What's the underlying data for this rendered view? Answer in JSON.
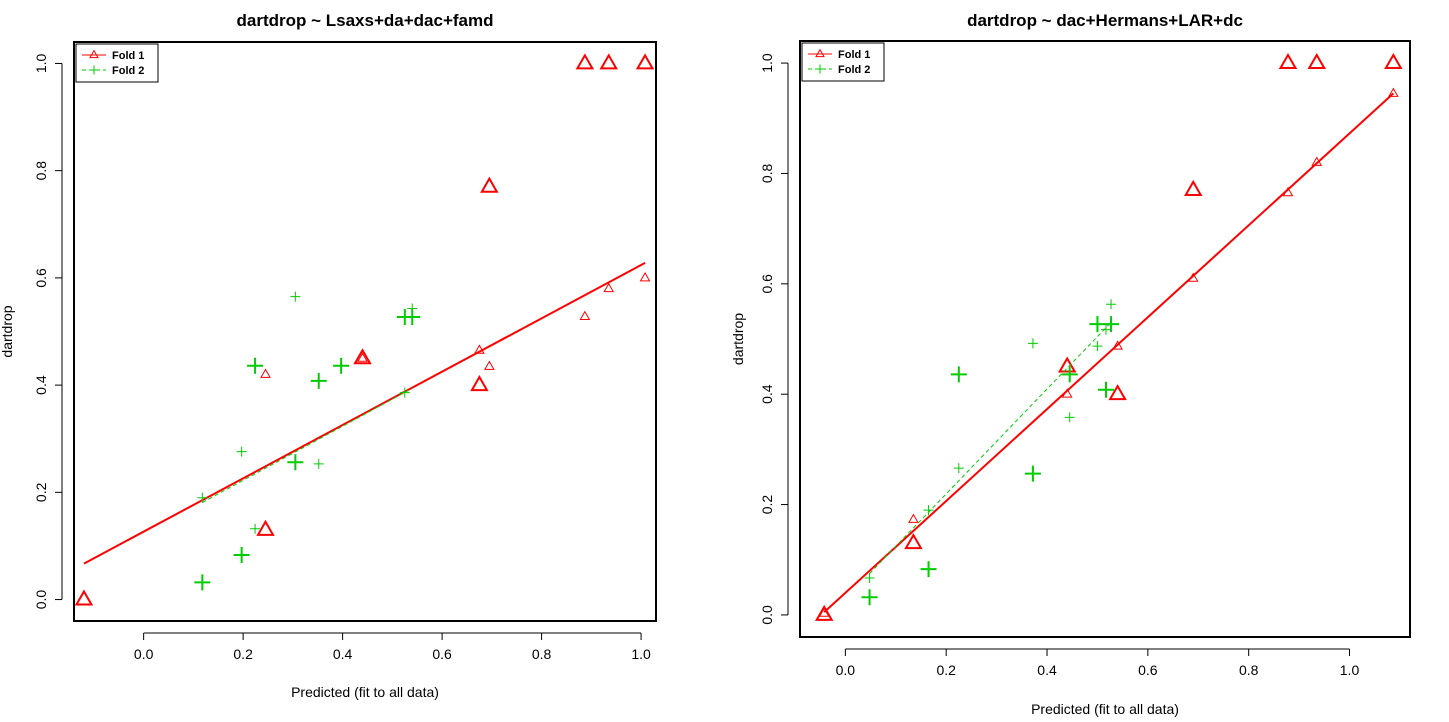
{
  "chart_data": [
    {
      "type": "scatter",
      "title": "dartdrop ~ Lsaxs+da+dac+famd",
      "xlabel": "Predicted (fit to all data)",
      "ylabel": "dartdrop",
      "xlim": [
        -0.14,
        1.03
      ],
      "ylim": [
        -0.04,
        1.04
      ],
      "xticks": [
        "0.0",
        "0.2",
        "0.4",
        "0.6",
        "0.8",
        "1.0"
      ],
      "yticks": [
        "0.0",
        "0.2",
        "0.4",
        "0.6",
        "0.8",
        "1.0"
      ],
      "legend": {
        "placement": "top-left",
        "entries": [
          "Fold 1",
          "Fold 2"
        ]
      },
      "colors": {
        "Fold 1": "#ff0000",
        "Fold 2": "#00cc00"
      },
      "series": [
        {
          "name": "Fold 1",
          "marker": "triangle",
          "observed": [
            {
              "x": -0.12,
              "y": 0.0
            },
            {
              "x": 0.245,
              "y": 0.13
            },
            {
              "x": 0.44,
              "y": 0.45
            },
            {
              "x": 0.675,
              "y": 0.4
            },
            {
              "x": 0.695,
              "y": 0.77
            },
            {
              "x": 0.887,
              "y": 1.0
            },
            {
              "x": 0.935,
              "y": 1.0
            },
            {
              "x": 1.008,
              "y": 1.0
            }
          ],
          "predicted": [
            {
              "x": 0.245,
              "y": 0.42
            },
            {
              "x": 0.44,
              "y": 0.45
            },
            {
              "x": 0.675,
              "y": 0.465
            },
            {
              "x": 0.695,
              "y": 0.435
            },
            {
              "x": 0.887,
              "y": 0.528
            },
            {
              "x": 0.935,
              "y": 0.58
            },
            {
              "x": 1.008,
              "y": 0.6
            }
          ],
          "fit_line": [
            {
              "x": -0.12,
              "y": 0.067
            },
            {
              "x": 1.008,
              "y": 0.628
            }
          ]
        },
        {
          "name": "Fold 2",
          "marker": "plus",
          "observed": [
            {
              "x": 0.118,
              "y": 0.032
            },
            {
              "x": 0.197,
              "y": 0.083
            },
            {
              "x": 0.224,
              "y": 0.436
            },
            {
              "x": 0.305,
              "y": 0.256
            },
            {
              "x": 0.352,
              "y": 0.408
            },
            {
              "x": 0.397,
              "y": 0.436
            },
            {
              "x": 0.525,
              "y": 0.527
            },
            {
              "x": 0.54,
              "y": 0.527
            }
          ],
          "predicted": [
            {
              "x": 0.118,
              "y": 0.19
            },
            {
              "x": 0.197,
              "y": 0.276
            },
            {
              "x": 0.224,
              "y": 0.132
            },
            {
              "x": 0.305,
              "y": 0.565
            },
            {
              "x": 0.352,
              "y": 0.253
            },
            {
              "x": 0.525,
              "y": 0.386
            },
            {
              "x": 0.54,
              "y": 0.543
            }
          ],
          "fit_line": [
            {
              "x": 0.118,
              "y": 0.181
            },
            {
              "x": 0.54,
              "y": 0.394
            }
          ]
        }
      ]
    },
    {
      "type": "scatter",
      "title": "dartdrop ~ dac+Hermans+LAR+dc",
      "xlabel": "Predicted (fit to all data)",
      "ylabel": "dartdrop",
      "xlim": [
        -0.09,
        1.12
      ],
      "ylim": [
        -0.04,
        1.04
      ],
      "xticks": [
        "0.0",
        "0.2",
        "0.4",
        "0.6",
        "0.8",
        "1.0"
      ],
      "yticks": [
        "0.0",
        "0.2",
        "0.4",
        "0.6",
        "0.8",
        "1.0"
      ],
      "legend": {
        "placement": "top-left",
        "entries": [
          "Fold 1",
          "Fold 2"
        ]
      },
      "colors": {
        "Fold 1": "#ff0000",
        "Fold 2": "#00cc00"
      },
      "series": [
        {
          "name": "Fold 1",
          "marker": "triangle",
          "observed": [
            {
              "x": -0.042,
              "y": 0.0
            },
            {
              "x": 0.135,
              "y": 0.13
            },
            {
              "x": 0.44,
              "y": 0.45
            },
            {
              "x": 0.54,
              "y": 0.4
            },
            {
              "x": 0.69,
              "y": 0.77
            },
            {
              "x": 0.878,
              "y": 1.0
            },
            {
              "x": 0.935,
              "y": 1.0
            },
            {
              "x": 1.087,
              "y": 1.0
            }
          ],
          "predicted": [
            {
              "x": -0.042,
              "y": 0.003
            },
            {
              "x": 0.135,
              "y": 0.173
            },
            {
              "x": 0.44,
              "y": 0.4
            },
            {
              "x": 0.54,
              "y": 0.487
            },
            {
              "x": 0.69,
              "y": 0.61
            },
            {
              "x": 0.878,
              "y": 0.765
            },
            {
              "x": 0.935,
              "y": 0.82
            },
            {
              "x": 1.087,
              "y": 0.945
            }
          ],
          "fit_line": [
            {
              "x": -0.042,
              "y": 0.005
            },
            {
              "x": 1.087,
              "y": 0.945
            }
          ]
        },
        {
          "name": "Fold 2",
          "marker": "plus",
          "observed": [
            {
              "x": 0.048,
              "y": 0.032
            },
            {
              "x": 0.165,
              "y": 0.083
            },
            {
              "x": 0.225,
              "y": 0.436
            },
            {
              "x": 0.372,
              "y": 0.256
            },
            {
              "x": 0.445,
              "y": 0.436
            },
            {
              "x": 0.5,
              "y": 0.527
            },
            {
              "x": 0.517,
              "y": 0.408
            },
            {
              "x": 0.527,
              "y": 0.527
            }
          ],
          "predicted": [
            {
              "x": 0.048,
              "y": 0.067
            },
            {
              "x": 0.165,
              "y": 0.19
            },
            {
              "x": 0.225,
              "y": 0.266
            },
            {
              "x": 0.372,
              "y": 0.492
            },
            {
              "x": 0.445,
              "y": 0.358
            },
            {
              "x": 0.5,
              "y": 0.487
            },
            {
              "x": 0.517,
              "y": 0.517
            },
            {
              "x": 0.527,
              "y": 0.563
            }
          ],
          "fit_line": [
            {
              "x": 0.048,
              "y": 0.075
            },
            {
              "x": 0.527,
              "y": 0.53
            }
          ]
        }
      ]
    }
  ]
}
